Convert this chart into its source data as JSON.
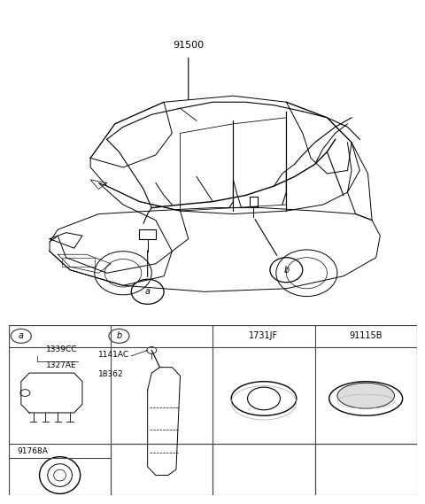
{
  "background_color": "#ffffff",
  "main_label": "91500",
  "callout_a": "a",
  "callout_b": "b",
  "col_headers": [
    "1731JF",
    "91115B"
  ],
  "cell_a_label": "a",
  "cell_b_label": "b",
  "cell_a_parts": [
    "1339CC",
    "1327AE"
  ],
  "cell_b_parts": [
    "1141AC",
    "18362"
  ],
  "cell_a2_label": "91768A",
  "line_color": "#000000",
  "grid_color": "#444444",
  "font_size_main": 8,
  "font_size_cell": 6.5,
  "font_size_header": 7
}
